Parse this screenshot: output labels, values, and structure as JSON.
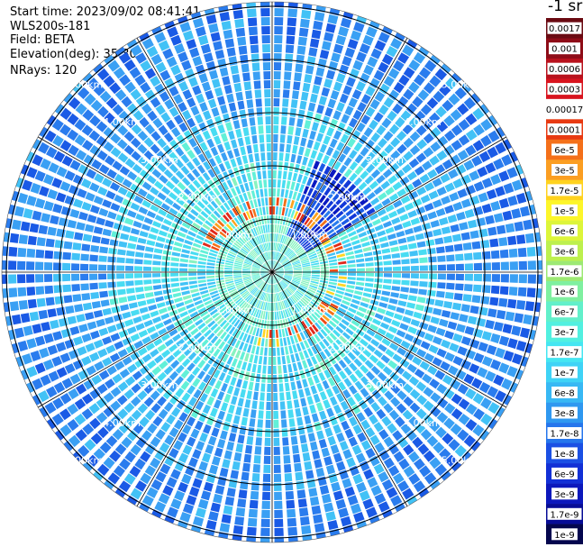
{
  "info": {
    "start_time": "Start time: 2023/09/02 08:41:41",
    "instrument": "WLS200s-181",
    "field": "Field: BETA",
    "elevation": "Elevation(deg): 35.30",
    "nrays": "NRays: 120"
  },
  "colorbar": {
    "unit": "-1 sr",
    "ticks": [
      "0.0017",
      "0.001",
      "0.0006",
      "0.0003",
      "0.00017",
      "0.0001",
      "6e-5",
      "3e-5",
      "1.7e-5",
      "1e-5",
      "6e-6",
      "3e-6",
      "1.7e-6",
      "1e-6",
      "6e-7",
      "3e-7",
      "1.7e-7",
      "1e-7",
      "6e-8",
      "3e-8",
      "1.7e-8",
      "1e-8",
      "6e-9",
      "3e-9",
      "1.7e-9",
      "1e-9"
    ],
    "colors": [
      "#6a0a12",
      "#8e0c17",
      "#b8121d",
      "#d8141e",
      "#ffffff",
      "#e83a12",
      "#f4701a",
      "#fb9e22",
      "#ffd21e",
      "#fdf62a",
      "#ddf53a",
      "#bdf04e",
      "#9de974",
      "#7ff0a0",
      "#62f0ca",
      "#52f0e0",
      "#45e6f2",
      "#3fd3f6",
      "#38b8f4",
      "#2f98f0",
      "#2676ec",
      "#1b50e4",
      "#1230d6",
      "#0c18bc",
      "#070c96",
      "#04064e"
    ]
  },
  "chart_data": {
    "type": "polar-ppi",
    "n_rays": 120,
    "range_rings_km": [
      1,
      2,
      3,
      4,
      5
    ],
    "ring_labels": [
      "1.00km",
      "2.00km",
      "3.00km",
      "4.00km",
      "5.00km"
    ],
    "max_range_km": 5.2,
    "field": "BETA",
    "units": "-1 sr"
  }
}
